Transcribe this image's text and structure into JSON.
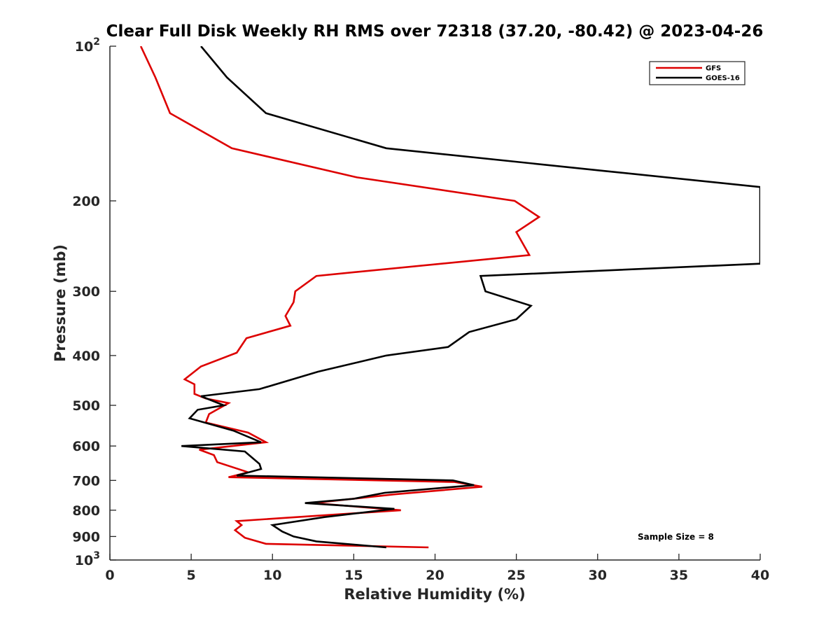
{
  "chart_data": {
    "type": "line",
    "title": "Clear Full Disk Weekly RH RMS over 72318 (37.20, -80.42) @ 2023-04-26",
    "xlabel": "Relative Humidity (%)",
    "ylabel": "Pressure (mb)",
    "xlim": [
      0,
      40
    ],
    "ylim": [
      100,
      1000
    ],
    "y_scale": "log",
    "y_reversed": true,
    "grid": false,
    "legend_position": "top-right",
    "x_ticks": [
      0,
      5,
      10,
      15,
      20,
      25,
      30,
      35,
      40
    ],
    "y_ticks": [
      {
        "value": 100,
        "label": "10",
        "sup": "2"
      },
      {
        "value": 200,
        "label": "200",
        "sup": ""
      },
      {
        "value": 300,
        "label": "300",
        "sup": ""
      },
      {
        "value": 400,
        "label": "400",
        "sup": ""
      },
      {
        "value": 500,
        "label": "500",
        "sup": ""
      },
      {
        "value": 600,
        "label": "600",
        "sup": ""
      },
      {
        "value": 700,
        "label": "700",
        "sup": ""
      },
      {
        "value": 800,
        "label": "800",
        "sup": ""
      },
      {
        "value": 900,
        "label": "900",
        "sup": ""
      },
      {
        "value": 1000,
        "label": "10",
        "sup": "3"
      }
    ],
    "annotation": "Sample Size = 8",
    "series": [
      {
        "name": "GFS",
        "color": "#dd0000",
        "points": [
          [
            1.9,
            100
          ],
          [
            2.8,
            115
          ],
          [
            3.7,
            135
          ],
          [
            7.5,
            158
          ],
          [
            15.2,
            180
          ],
          [
            24.9,
            200
          ],
          [
            26.4,
            215
          ],
          [
            25.0,
            230
          ],
          [
            25.8,
            255
          ],
          [
            12.7,
            280
          ],
          [
            11.4,
            300
          ],
          [
            11.3,
            315
          ],
          [
            10.8,
            335
          ],
          [
            11.1,
            350
          ],
          [
            8.4,
            370
          ],
          [
            7.8,
            395
          ],
          [
            5.6,
            420
          ],
          [
            4.6,
            445
          ],
          [
            5.2,
            455
          ],
          [
            5.2,
            475
          ],
          [
            5.9,
            485
          ],
          [
            7.3,
            495
          ],
          [
            6.1,
            520
          ],
          [
            5.9,
            540
          ],
          [
            8.5,
            565
          ],
          [
            9.6,
            590
          ],
          [
            5.5,
            610
          ],
          [
            6.4,
            625
          ],
          [
            6.6,
            645
          ],
          [
            8.2,
            670
          ],
          [
            8.5,
            675
          ],
          [
            7.3,
            690
          ],
          [
            21.2,
            705
          ],
          [
            22.9,
            720
          ],
          [
            17.5,
            745
          ],
          [
            12.5,
            775
          ],
          [
            17.9,
            800
          ],
          [
            7.8,
            840
          ],
          [
            8.1,
            855
          ],
          [
            7.7,
            875
          ],
          [
            8.3,
            905
          ],
          [
            9.6,
            930
          ],
          [
            19.6,
            945
          ]
        ]
      },
      {
        "name": "GOES-16",
        "color": "#000000",
        "points": [
          [
            5.6,
            100
          ],
          [
            7.2,
            115
          ],
          [
            9.6,
            135
          ],
          [
            17.0,
            158
          ],
          [
            30.5,
            175
          ],
          [
            40.0,
            188
          ],
          [
            40.0,
            265
          ],
          [
            22.8,
            280
          ],
          [
            23.1,
            300
          ],
          [
            25.9,
            320
          ],
          [
            25.0,
            340
          ],
          [
            22.1,
            360
          ],
          [
            20.8,
            385
          ],
          [
            17.0,
            400
          ],
          [
            12.8,
            430
          ],
          [
            9.2,
            465
          ],
          [
            5.6,
            480
          ],
          [
            7.0,
            500
          ],
          [
            5.4,
            510
          ],
          [
            4.9,
            530
          ],
          [
            7.6,
            560
          ],
          [
            9.3,
            590
          ],
          [
            4.4,
            600
          ],
          [
            8.3,
            615
          ],
          [
            9.2,
            650
          ],
          [
            9.3,
            665
          ],
          [
            7.8,
            685
          ],
          [
            21.1,
            700
          ],
          [
            22.4,
            715
          ],
          [
            16.9,
            740
          ],
          [
            15.0,
            760
          ],
          [
            12.0,
            775
          ],
          [
            17.5,
            795
          ],
          [
            13.2,
            825
          ],
          [
            10.0,
            855
          ],
          [
            10.6,
            880
          ],
          [
            11.3,
            900
          ],
          [
            12.7,
            920
          ],
          [
            17.0,
            945
          ]
        ]
      }
    ]
  }
}
